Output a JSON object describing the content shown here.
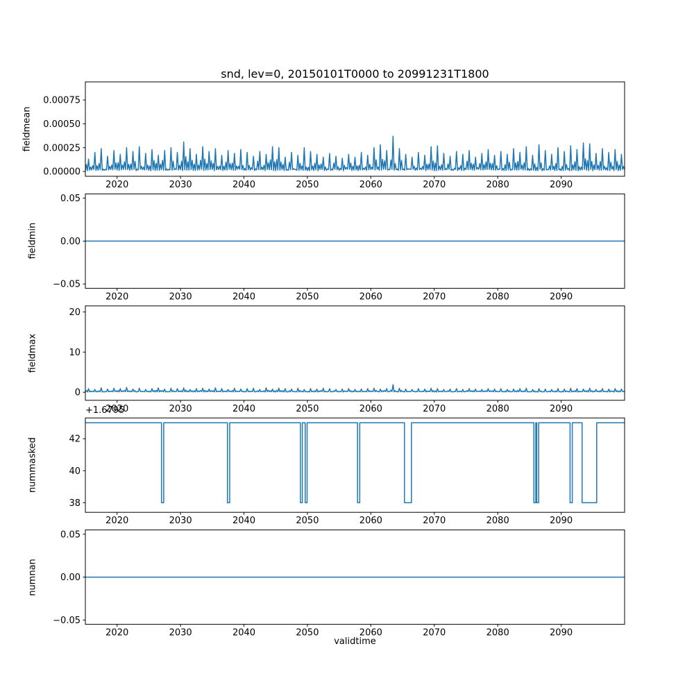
{
  "title": "snd, lev=0, 20150101T0000 to 20991231T1800",
  "xlabel": "validtime",
  "line_color": "#1f77b4",
  "axis_color": "#000000",
  "background_color": "#ffffff",
  "x_axis": {
    "min": 2015,
    "max": 2100,
    "ticks": [
      2020,
      2030,
      2040,
      2050,
      2060,
      2070,
      2080,
      2090
    ],
    "tick_labels": [
      "2020",
      "2030",
      "2040",
      "2050",
      "2060",
      "2070",
      "2080",
      "2090"
    ]
  },
  "chart_data": [
    {
      "type": "line",
      "name": "fieldmean",
      "ylabel": "fieldmean",
      "ylim": [
        -5e-05,
        0.00094
      ],
      "yticks": [
        0.0,
        0.00025,
        0.0005,
        0.00075
      ],
      "ytick_labels": [
        "0.00000",
        "0.00025",
        "0.00050",
        "0.00075"
      ],
      "color": "#1f77b4",
      "series": {
        "kind": "seasonal-spikes",
        "baseline": 2e-05,
        "peak_unit": 1e-05,
        "minor_frac": 0.45,
        "annual_peaks": [
          13,
          20,
          24,
          16,
          22,
          18,
          25,
          21,
          26,
          19,
          23,
          17,
          22,
          25,
          20,
          31,
          24,
          18,
          26,
          21,
          24,
          17,
          22,
          19,
          23,
          20,
          16,
          21,
          18,
          26,
          25,
          15,
          20,
          17,
          25,
          21,
          18,
          15,
          19,
          16,
          14,
          18,
          15,
          20,
          17,
          25,
          28,
          22,
          37,
          24,
          18,
          15,
          20,
          17,
          26,
          27,
          19,
          16,
          21,
          18,
          22,
          15,
          19,
          23,
          17,
          21,
          18,
          24,
          20,
          26,
          17,
          28,
          22,
          18,
          25,
          21,
          27,
          23,
          30,
          29,
          19,
          24,
          20,
          23,
          18
        ]
      }
    },
    {
      "type": "line",
      "name": "fieldmin",
      "ylabel": "fieldmin",
      "ylim": [
        -0.055,
        0.055
      ],
      "yticks": [
        -0.05,
        0.0,
        0.05
      ],
      "ytick_labels": [
        "−0.05",
        "0.00",
        "0.05"
      ],
      "color": "#1f77b4",
      "series": {
        "kind": "constant",
        "value": 0.0
      }
    },
    {
      "type": "line",
      "name": "fieldmax",
      "ylabel": "fieldmax",
      "ylim": [
        -2.0,
        21.5
      ],
      "yticks": [
        0,
        10,
        20
      ],
      "ytick_labels": [
        "0",
        "10",
        "20"
      ],
      "color": "#1f77b4",
      "series": {
        "kind": "seasonal-spikes",
        "baseline": 0.15,
        "peak_unit": 1,
        "minor_frac": 0.35,
        "annual_peaks": [
          0.9,
          0.7,
          1.1,
          0.8,
          1.0,
          0.9,
          1.2,
          0.8,
          1.0,
          0.7,
          0.9,
          1.1,
          0.8,
          1.0,
          0.9,
          1.1,
          0.7,
          0.9,
          1.0,
          0.8,
          1.1,
          0.9,
          0.7,
          1.0,
          0.8,
          0.9,
          1.0,
          0.7,
          1.1,
          0.8,
          1.0,
          0.9,
          0.8,
          1.0,
          0.7,
          0.9,
          0.8,
          1.0,
          0.9,
          0.7,
          0.8,
          0.9,
          0.7,
          0.8,
          0.9,
          1.0,
          0.8,
          0.9,
          1.9,
          1.0,
          0.8,
          0.7,
          0.9,
          0.8,
          1.0,
          0.9,
          0.7,
          0.8,
          0.9,
          0.7,
          0.9,
          0.8,
          0.7,
          0.9,
          0.8,
          0.9,
          0.7,
          0.8,
          0.9,
          1.0,
          0.7,
          0.9,
          0.8,
          0.7,
          0.9,
          0.8,
          1.0,
          0.9,
          0.8,
          1.0,
          0.7,
          0.9,
          0.8,
          0.9,
          0.8
        ]
      }
    },
    {
      "type": "line",
      "name": "nummasked",
      "ylabel": "nummasked",
      "offset_text": "+1.6795",
      "ylim": [
        37.4,
        43.3
      ],
      "yticks": [
        38,
        40,
        42
      ],
      "ytick_labels": [
        "38",
        "40",
        "42"
      ],
      "color": "#1f77b4",
      "series": {
        "kind": "steps",
        "high": 43,
        "low": 38,
        "dips": [
          [
            2027.0,
            2027.35
          ],
          [
            2037.4,
            2037.75
          ],
          [
            2048.9,
            2049.2
          ],
          [
            2049.65,
            2049.95
          ],
          [
            2057.9,
            2058.25
          ],
          [
            2065.3,
            2066.4
          ],
          [
            2085.7,
            2086.0
          ],
          [
            2086.15,
            2086.45
          ],
          [
            2091.4,
            2091.75
          ],
          [
            2093.3,
            2095.6
          ]
        ]
      }
    },
    {
      "type": "line",
      "name": "numnan",
      "ylabel": "numnan",
      "ylim": [
        -0.055,
        0.055
      ],
      "yticks": [
        -0.05,
        0.0,
        0.05
      ],
      "ytick_labels": [
        "−0.05",
        "0.00",
        "0.05"
      ],
      "color": "#1f77b4",
      "series": {
        "kind": "constant",
        "value": 0.0
      }
    }
  ]
}
